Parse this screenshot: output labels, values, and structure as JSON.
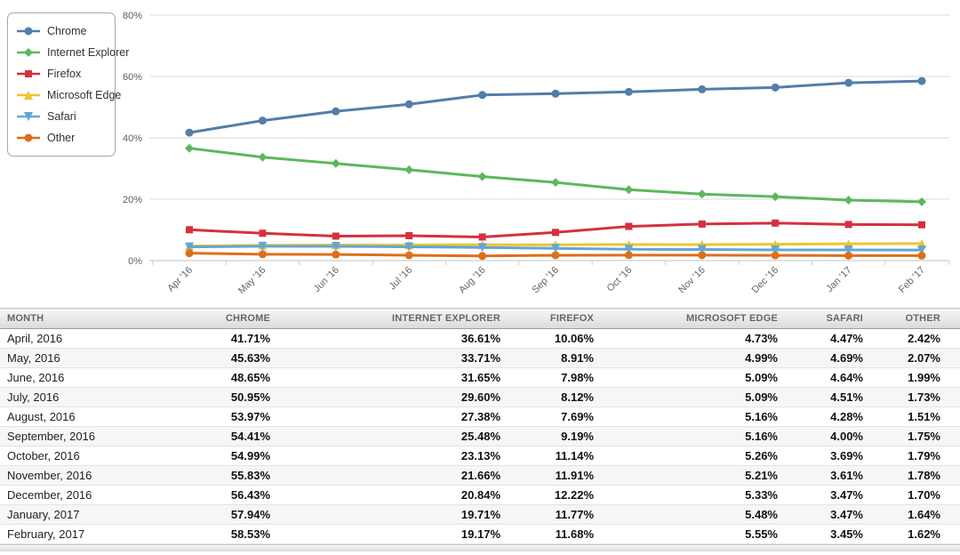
{
  "chart_data": {
    "type": "line",
    "title": "",
    "xlabel": "",
    "ylabel": "",
    "x_categories": [
      "Apr '16",
      "May '16",
      "Jun '16",
      "Jul '16",
      "Aug '16",
      "Sep '16",
      "Oct '16",
      "Nov '16",
      "Dec '16",
      "Jan '17",
      "Feb '17"
    ],
    "y_ticks": [
      0,
      20,
      40,
      60,
      80
    ],
    "y_tick_labels": [
      "0%",
      "20%",
      "40%",
      "60%",
      "80%"
    ],
    "ylim": [
      0,
      80
    ],
    "grid": true,
    "legend_position": "top-left",
    "series": [
      {
        "name": "Chrome",
        "color": "#527EA8",
        "marker": "circle",
        "values": [
          41.71,
          45.63,
          48.65,
          50.95,
          53.97,
          54.41,
          54.99,
          55.83,
          56.43,
          57.94,
          58.53
        ]
      },
      {
        "name": "Internet Explorer",
        "color": "#5CB85C",
        "marker": "diamond",
        "values": [
          36.61,
          33.71,
          31.65,
          29.6,
          27.38,
          25.48,
          23.13,
          21.66,
          20.84,
          19.71,
          19.17
        ]
      },
      {
        "name": "Firefox",
        "color": "#D5303E",
        "marker": "square",
        "values": [
          10.06,
          8.91,
          7.98,
          8.12,
          7.69,
          9.19,
          11.14,
          11.91,
          12.22,
          11.77,
          11.68
        ]
      },
      {
        "name": "Microsoft Edge",
        "color": "#EEC431",
        "marker": "triangle",
        "values": [
          4.73,
          4.99,
          5.09,
          5.09,
          5.16,
          5.16,
          5.26,
          5.21,
          5.33,
          5.48,
          5.55
        ]
      },
      {
        "name": "Safari",
        "color": "#63A6D4",
        "marker": "triangle-down",
        "values": [
          4.47,
          4.69,
          4.64,
          4.51,
          4.28,
          4.0,
          3.69,
          3.61,
          3.47,
          3.47,
          3.45
        ]
      },
      {
        "name": "Other",
        "color": "#DD6F1B",
        "marker": "circle",
        "values": [
          2.42,
          2.07,
          1.99,
          1.73,
          1.51,
          1.75,
          1.79,
          1.78,
          1.7,
          1.64,
          1.62
        ]
      }
    ]
  },
  "table": {
    "headers": [
      "MONTH",
      "CHROME",
      "INTERNET EXPLORER",
      "FIREFOX",
      "MICROSOFT EDGE",
      "SAFARI",
      "OTHER"
    ],
    "rows": [
      [
        "April, 2016",
        "41.71%",
        "36.61%",
        "10.06%",
        "4.73%",
        "4.47%",
        "2.42%"
      ],
      [
        "May, 2016",
        "45.63%",
        "33.71%",
        "8.91%",
        "4.99%",
        "4.69%",
        "2.07%"
      ],
      [
        "June, 2016",
        "48.65%",
        "31.65%",
        "7.98%",
        "5.09%",
        "4.64%",
        "1.99%"
      ],
      [
        "July, 2016",
        "50.95%",
        "29.60%",
        "8.12%",
        "5.09%",
        "4.51%",
        "1.73%"
      ],
      [
        "August, 2016",
        "53.97%",
        "27.38%",
        "7.69%",
        "5.16%",
        "4.28%",
        "1.51%"
      ],
      [
        "September, 2016",
        "54.41%",
        "25.48%",
        "9.19%",
        "5.16%",
        "4.00%",
        "1.75%"
      ],
      [
        "October, 2016",
        "54.99%",
        "23.13%",
        "11.14%",
        "5.26%",
        "3.69%",
        "1.79%"
      ],
      [
        "November, 2016",
        "55.83%",
        "21.66%",
        "11.91%",
        "5.21%",
        "3.61%",
        "1.78%"
      ],
      [
        "December, 2016",
        "56.43%",
        "20.84%",
        "12.22%",
        "5.33%",
        "3.47%",
        "1.70%"
      ],
      [
        "January, 2017",
        "57.94%",
        "19.71%",
        "11.77%",
        "5.48%",
        "3.47%",
        "1.64%"
      ],
      [
        "February, 2017",
        "58.53%",
        "19.17%",
        "11.68%",
        "5.55%",
        "3.45%",
        "1.62%"
      ]
    ]
  }
}
